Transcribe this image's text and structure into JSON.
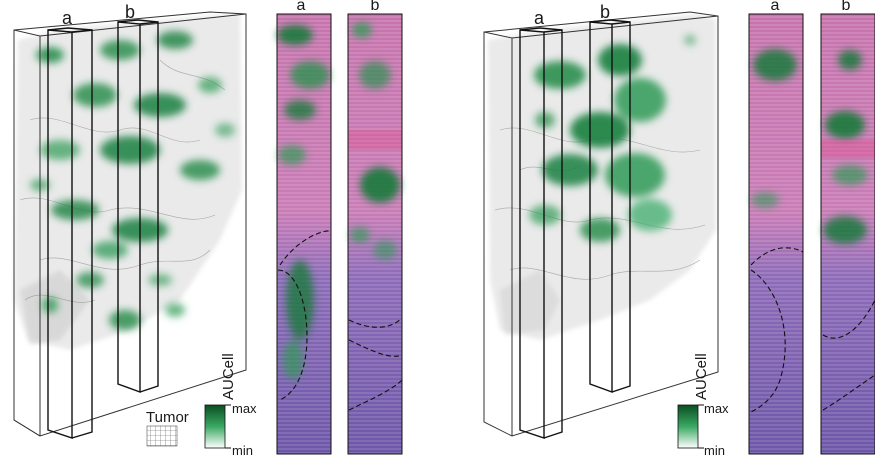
{
  "left_panel": {
    "slab_labels": [
      "a",
      "b"
    ],
    "strip_labels": [
      "a",
      "b"
    ],
    "legend": {
      "colorbar_title": "AUCell",
      "max_label": "max",
      "min_label": "min",
      "tumor_label": "Tumor"
    }
  },
  "right_panel": {
    "slab_labels": [
      "a",
      "b"
    ],
    "strip_labels": [
      "a",
      "b"
    ],
    "legend": {
      "colorbar_title": "AUCell",
      "max_label": "max",
      "min_label": "min"
    }
  },
  "colors": {
    "signal_high": "#0f6b34",
    "signal_mid": "#2e9a55",
    "tumor_tissue": "#9a9a9a",
    "stain_pink": "#d27fb8",
    "stain_purple": "#6e5cae"
  }
}
